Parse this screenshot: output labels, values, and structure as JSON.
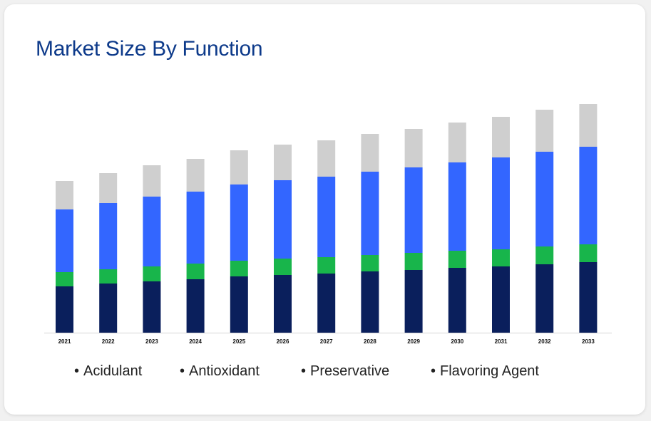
{
  "title": "Market Size By Function",
  "chart_data": {
    "type": "bar",
    "stacked": true,
    "title": "Market Size By Function",
    "xlabel": "",
    "ylabel": "",
    "categories": [
      "2021",
      "2022",
      "2023",
      "2024",
      "2025",
      "2026",
      "2027",
      "2028",
      "2029",
      "2030",
      "2031",
      "2032",
      "2033"
    ],
    "series": [
      {
        "name": "Acidulant",
        "color": "#0a1f5c",
        "values": [
          65,
          69,
          72,
          75,
          79,
          81,
          83,
          86,
          88,
          91,
          93,
          96,
          99
        ]
      },
      {
        "name": "Antioxidant",
        "color": "#18b54b",
        "values": [
          20,
          20,
          21,
          22,
          22,
          23,
          23,
          23,
          24,
          24,
          24,
          25,
          25
        ]
      },
      {
        "name": "Preservative",
        "color": "#3366ff",
        "values": [
          88,
          93,
          98,
          101,
          107,
          110,
          113,
          117,
          120,
          124,
          129,
          133,
          137
        ]
      },
      {
        "name": "Flavoring Agent",
        "color": "#cfcfcf",
        "values": [
          40,
          42,
          44,
          46,
          48,
          50,
          51,
          53,
          54,
          56,
          57,
          59,
          60
        ]
      }
    ],
    "ylim": [
      0,
      330
    ],
    "grid": false,
    "legend_position": "bottom"
  },
  "legend": [
    "Acidulant",
    "Antioxidant",
    "Preservative",
    "Flavoring Agent"
  ],
  "legend_bullet": "•"
}
